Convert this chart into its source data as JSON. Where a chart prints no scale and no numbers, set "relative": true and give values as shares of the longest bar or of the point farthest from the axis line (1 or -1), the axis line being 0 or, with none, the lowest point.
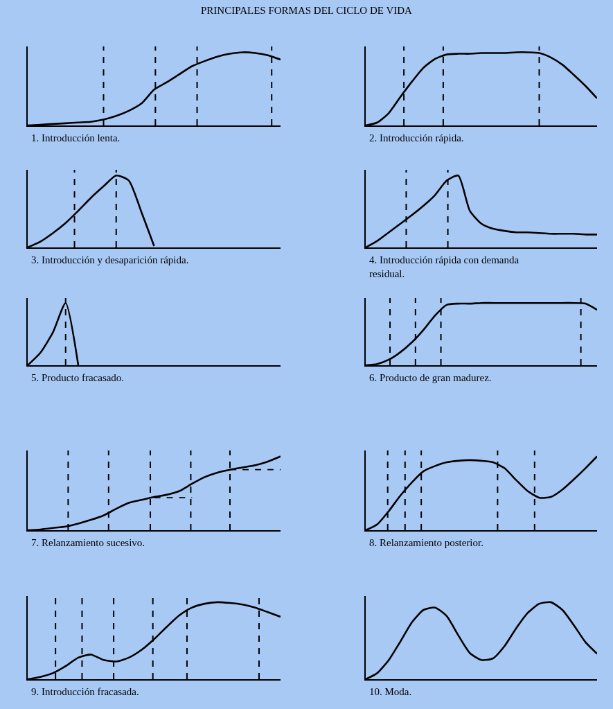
{
  "chart_data": [
    {
      "type": "line",
      "relative": true,
      "title": "PRINCIPALES FORMAS DEL CICLO DE VIDA",
      "xlabel": "1. Introducción lenta.",
      "grid": false,
      "tick_labels": false,
      "line_style": "solid",
      "categories": [
        null,
        null,
        null,
        null,
        null,
        null,
        null,
        null,
        null,
        null,
        null,
        null,
        null,
        null,
        null,
        null,
        null,
        null,
        null,
        null,
        null
      ],
      "series": [
        {
          "color": "#000000",
          "values": [
            0,
            0.01,
            0.02,
            0.03,
            0.04,
            0.05,
            0.08,
            0.13,
            0.2,
            0.3,
            0.49,
            0.59,
            0.7,
            0.81,
            0.88,
            0.94,
            0.98,
            1,
            0.99,
            0.96,
            0.9
          ]
        }
      ]
    },
    {
      "type": "line",
      "relative": true,
      "xlabel": "2. Introducción rápida.",
      "grid": false,
      "tick_labels": false,
      "line_style": "solid",
      "categories": [
        null,
        null,
        null,
        null,
        null,
        null,
        null,
        null,
        null,
        null,
        null,
        null,
        null,
        null,
        null,
        null,
        null,
        null,
        null,
        null,
        null
      ],
      "series": [
        {
          "color": "#000000",
          "values": [
            0,
            0.04,
            0.17,
            0.39,
            0.6,
            0.79,
            0.91,
            0.97,
            0.98,
            0.98,
            0.99,
            0.99,
            0.99,
            1,
            1,
            0.99,
            0.93,
            0.83,
            0.69,
            0.54,
            0.37
          ]
        }
      ]
    },
    {
      "type": "line",
      "relative": true,
      "xlabel": "3. Introducción y desaparición rápida.",
      "grid": false,
      "tick_labels": false,
      "line_style": "solid",
      "categories": [
        null,
        null,
        null,
        null,
        null,
        null,
        null,
        null,
        null,
        null,
        null,
        null,
        null,
        null,
        null,
        null,
        null,
        null,
        null,
        null,
        null
      ],
      "series": [
        {
          "color": "#000000",
          "values": [
            0,
            0.08,
            0.2,
            0.34,
            0.51,
            0.69,
            0.85,
            1,
            0.93,
            0.49,
            0.02,
            null,
            null,
            null,
            null,
            null,
            null,
            null,
            null,
            null,
            null
          ]
        }
      ]
    },
    {
      "type": "line",
      "relative": true,
      "xlabel": "4. Introducción rápida con demanda residual.",
      "grid": false,
      "tick_labels": false,
      "line_style": "solid",
      "categories": [
        null,
        null,
        null,
        null,
        null,
        null,
        null,
        null,
        null,
        null,
        null,
        null,
        null,
        null,
        null,
        null,
        null,
        null,
        null,
        null,
        null
      ],
      "series": [
        {
          "color": "#000000",
          "values": [
            0,
            0.09,
            0.21,
            0.33,
            0.45,
            0.58,
            0.73,
            0.93,
            1,
            0.51,
            0.33,
            0.26,
            0.23,
            0.21,
            0.21,
            0.2,
            0.19,
            0.19,
            0.19,
            0.18,
            0.18
          ]
        }
      ]
    },
    {
      "type": "line",
      "relative": true,
      "xlabel": "5. Producto fracasado.",
      "grid": false,
      "tick_labels": false,
      "line_style": "solid",
      "categories": [
        null,
        null,
        null,
        null,
        null,
        null,
        null,
        null,
        null,
        null,
        null,
        null,
        null,
        null,
        null,
        null,
        null,
        null,
        null,
        null,
        null
      ],
      "series": [
        {
          "color": "#000000",
          "values": [
            0,
            0.2,
            0.53,
            1,
            0,
            null,
            null,
            null,
            null,
            null,
            null,
            null,
            null,
            null,
            null,
            null,
            null,
            null,
            null,
            null,
            null
          ]
        }
      ]
    },
    {
      "type": "line",
      "relative": true,
      "xlabel": "6. Producto de gran madurez.",
      "grid": false,
      "tick_labels": false,
      "line_style": "solid",
      "categories": [
        null,
        null,
        null,
        null,
        null,
        null,
        null,
        null,
        null,
        null,
        null,
        null,
        null,
        null,
        null,
        null,
        null,
        null,
        null,
        null,
        null
      ],
      "series": [
        {
          "color": "#000000",
          "values": [
            0,
            0.02,
            0.09,
            0.21,
            0.37,
            0.57,
            0.8,
            0.97,
            0.99,
            0.99,
            1,
            1,
            1,
            1,
            1,
            1,
            1,
            1,
            1,
            0.99,
            0.89
          ]
        }
      ]
    },
    {
      "type": "line",
      "relative": true,
      "xlabel": "7. Relanzamiento sucesivo.",
      "grid": false,
      "tick_labels": false,
      "line_style": "solid",
      "categories": [
        null,
        null,
        null,
        null,
        null,
        null,
        null,
        null,
        null,
        null,
        null,
        null,
        null,
        null,
        null,
        null,
        null,
        null,
        null,
        null,
        null
      ],
      "series": [
        {
          "color": "#000000",
          "values": [
            0,
            0.01,
            0.03,
            0.05,
            0.09,
            0.14,
            0.2,
            0.29,
            0.37,
            0.41,
            0.45,
            0.48,
            0.53,
            0.63,
            0.72,
            0.78,
            0.82,
            0.85,
            0.88,
            0.93,
            1
          ]
        },
        {
          "color": "#000000",
          "line_style": "dashed",
          "values": [
            null,
            null,
            null,
            null,
            null,
            null,
            null,
            null,
            null,
            null,
            0.44,
            0.44,
            0.44,
            0.44,
            null,
            null,
            null,
            null,
            null,
            null,
            null
          ]
        },
        {
          "color": "#000000",
          "line_style": "dashed",
          "values": [
            null,
            null,
            null,
            null,
            null,
            null,
            null,
            null,
            null,
            null,
            null,
            null,
            null,
            null,
            null,
            null,
            0.82,
            0.82,
            0.82,
            0.82,
            0.82
          ]
        }
      ]
    },
    {
      "type": "line",
      "relative": true,
      "xlabel": "8. Relanzamiento posterior.",
      "grid": false,
      "tick_labels": false,
      "line_style": "solid",
      "categories": [
        null,
        null,
        null,
        null,
        null,
        null,
        null,
        null,
        null,
        null,
        null,
        null,
        null,
        null,
        null,
        null,
        null,
        null,
        null,
        null,
        null
      ],
      "series": [
        {
          "color": "#000000",
          "values": [
            0,
            0.08,
            0.26,
            0.47,
            0.65,
            0.8,
            0.87,
            0.92,
            0.94,
            0.95,
            0.94,
            0.92,
            0.84,
            0.68,
            0.53,
            0.44,
            0.45,
            0.55,
            0.69,
            0.84,
            1
          ]
        }
      ]
    },
    {
      "type": "line",
      "relative": true,
      "xlabel": "9. Introducción fracasada.",
      "grid": false,
      "tick_labels": false,
      "line_style": "solid",
      "categories": [
        null,
        null,
        null,
        null,
        null,
        null,
        null,
        null,
        null,
        null,
        null,
        null,
        null,
        null,
        null,
        null,
        null,
        null,
        null,
        null,
        null
      ],
      "series": [
        {
          "color": "#000000",
          "values": [
            0,
            0.03,
            0.08,
            0.17,
            0.28,
            0.32,
            0.25,
            0.23,
            0.28,
            0.38,
            0.52,
            0.68,
            0.83,
            0.93,
            0.98,
            1,
            0.99,
            0.97,
            0.93,
            0.87,
            0.81
          ]
        }
      ]
    },
    {
      "type": "line",
      "relative": true,
      "xlabel": "10. Moda.",
      "grid": false,
      "tick_labels": false,
      "line_style": "solid",
      "categories": [
        null,
        null,
        null,
        null,
        null,
        null,
        null,
        null,
        null,
        null,
        null,
        null,
        null,
        null,
        null,
        null,
        null,
        null,
        null,
        null,
        null
      ],
      "series": [
        {
          "color": "#000000",
          "values": [
            0,
            0.08,
            0.25,
            0.49,
            0.74,
            0.9,
            0.93,
            0.82,
            0.57,
            0.34,
            0.25,
            0.27,
            0.43,
            0.66,
            0.86,
            0.98,
            1,
            0.9,
            0.7,
            0.48,
            0.33
          ]
        }
      ]
    }
  ]
}
